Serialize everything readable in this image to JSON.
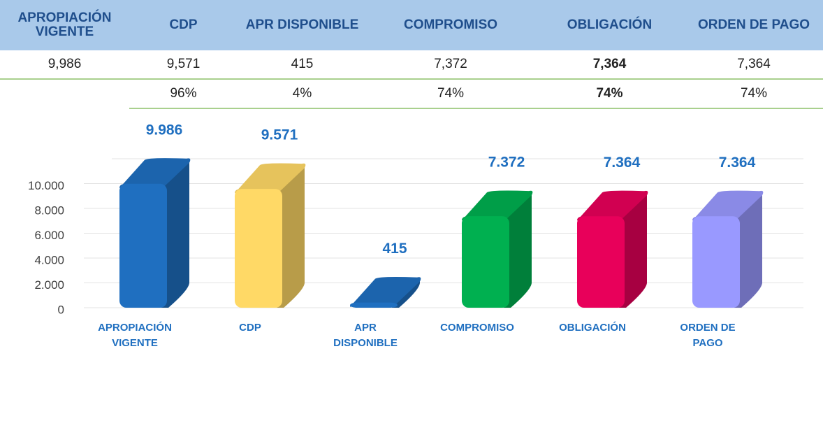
{
  "table": {
    "header": [
      "APROPIACIÓN\nVIGENTE",
      "CDP",
      "APR DISPONIBLE",
      "COMPROMISO",
      "OBLIGACIÓN",
      "ORDEN DE PAGO"
    ],
    "values": [
      "9,986",
      "9,571",
      "415",
      "7,372",
      "7,364",
      "7,364"
    ],
    "percents": [
      null,
      "96%",
      "4%",
      "74%",
      "74%",
      "74%"
    ]
  },
  "chart_data": {
    "type": "bar",
    "categories": [
      "APROPIACIÓN\nVIGENTE",
      "CDP",
      "APR\nDISPONIBLE",
      "COMPROMISO",
      "OBLIGACIÓN",
      "ORDEN DE\nPAGO"
    ],
    "values": [
      9986,
      9571,
      415,
      7372,
      7364,
      7364
    ],
    "value_labels": [
      "9.986",
      "9.571",
      "415",
      "7.372",
      "7.364",
      "7.364"
    ],
    "colors": [
      "#1f6fc0",
      "#ffd966",
      "#1f6fc0",
      "#00b050",
      "#e8005a",
      "#9999ff"
    ],
    "ylim": [
      0,
      12000
    ],
    "yticks": [
      0,
      {
        "value": 2000,
        "label": "2.000"
      },
      {
        "value": 4000,
        "label": "4.000"
      },
      {
        "value": 6000,
        "label": "6.000"
      },
      {
        "value": 8000,
        "label": "8.000"
      },
      {
        "value": 10000,
        "label": "10.000"
      }
    ],
    "grid": true
  }
}
